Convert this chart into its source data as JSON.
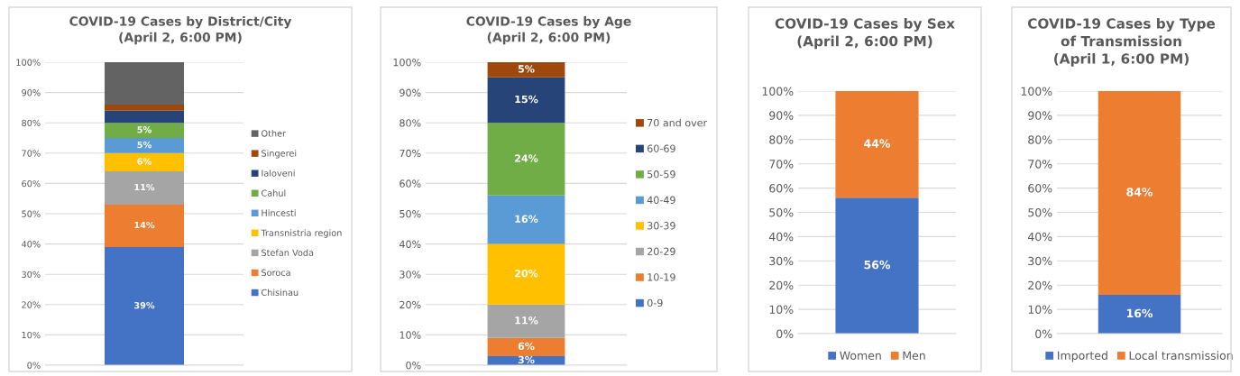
{
  "chart_data": [
    {
      "type": "bar",
      "title": "COVID-19 Cases by District/City\n(April 2, 6:00 PM)",
      "stacked": true,
      "categories": [
        null
      ],
      "ylim": [
        0,
        100
      ],
      "yticks": [
        {
          "value": 0,
          "label": "0%"
        },
        {
          "value": 10,
          "label": "10%"
        },
        {
          "value": 20,
          "label": "20%"
        },
        {
          "value": 30,
          "label": "30%"
        },
        {
          "value": 40,
          "label": "40%"
        },
        {
          "value": 50,
          "label": "50%"
        },
        {
          "value": 60,
          "label": "60%"
        },
        {
          "value": 70,
          "label": "70%"
        },
        {
          "value": 80,
          "label": "80%"
        },
        {
          "value": 90,
          "label": "90%"
        },
        {
          "value": 100,
          "label": "100%"
        }
      ],
      "grid": "y",
      "legend": "right",
      "series": [
        {
          "name": "Chisinau",
          "color": "#4472c4",
          "values": [
            39
          ],
          "value_labels": [
            "39%"
          ]
        },
        {
          "name": "Soroca",
          "color": "#ed7d31",
          "values": [
            14
          ],
          "value_labels": [
            "14%"
          ]
        },
        {
          "name": "Stefan Voda",
          "color": "#a5a5a5",
          "values": [
            11
          ],
          "value_labels": [
            "11%"
          ]
        },
        {
          "name": "Transnistria region",
          "color": "#ffc000",
          "values": [
            6
          ],
          "value_labels": [
            "6%"
          ]
        },
        {
          "name": "Hincesti",
          "color": "#5b9bd5",
          "values": [
            5
          ],
          "value_labels": [
            "5%"
          ]
        },
        {
          "name": "Cahul",
          "color": "#70ad47",
          "values": [
            5
          ],
          "value_labels": [
            "5%"
          ]
        },
        {
          "name": "Ialoveni",
          "color": "#264478",
          "values": [
            4
          ],
          "value_labels": [
            null
          ]
        },
        {
          "name": "Singerei",
          "color": "#9e480e",
          "values": [
            2
          ],
          "value_labels": [
            null
          ]
        },
        {
          "name": "Other",
          "color": "#636363",
          "values": [
            14
          ],
          "value_labels": [
            null
          ]
        }
      ]
    },
    {
      "type": "bar",
      "title": "COVID-19 Cases by Age\n(April 2, 6:00 PM)",
      "stacked": true,
      "categories": [
        null
      ],
      "ylim": [
        0,
        100
      ],
      "yticks": [
        {
          "value": 0,
          "label": "0%"
        },
        {
          "value": 10,
          "label": "10%"
        },
        {
          "value": 20,
          "label": "20%"
        },
        {
          "value": 30,
          "label": "30%"
        },
        {
          "value": 40,
          "label": "40%"
        },
        {
          "value": 50,
          "label": "50%"
        },
        {
          "value": 60,
          "label": "60%"
        },
        {
          "value": 70,
          "label": "70%"
        },
        {
          "value": 80,
          "label": "80%"
        },
        {
          "value": 90,
          "label": "90%"
        },
        {
          "value": 100,
          "label": "100%"
        }
      ],
      "grid": "y",
      "legend": "right",
      "series": [
        {
          "name": "0-9",
          "color": "#4472c4",
          "values": [
            3
          ],
          "value_labels": [
            "3%"
          ]
        },
        {
          "name": "10-19",
          "color": "#ed7d31",
          "values": [
            6
          ],
          "value_labels": [
            "6%"
          ]
        },
        {
          "name": "20-29",
          "color": "#a5a5a5",
          "values": [
            11
          ],
          "value_labels": [
            "11%"
          ]
        },
        {
          "name": "30-39",
          "color": "#ffc000",
          "values": [
            20
          ],
          "value_labels": [
            "20%"
          ]
        },
        {
          "name": "40-49",
          "color": "#5b9bd5",
          "values": [
            16
          ],
          "value_labels": [
            "16%"
          ]
        },
        {
          "name": "50-59",
          "color": "#70ad47",
          "values": [
            24
          ],
          "value_labels": [
            "24%"
          ]
        },
        {
          "name": "60-69",
          "color": "#264478",
          "values": [
            15
          ],
          "value_labels": [
            "15%"
          ]
        },
        {
          "name": "70 and over",
          "color": "#9e480e",
          "values": [
            5
          ],
          "value_labels": [
            "5%"
          ]
        }
      ]
    },
    {
      "type": "bar",
      "title": "COVID-19 Cases by Sex\n(April 2, 6:00 PM)",
      "stacked": true,
      "categories": [
        null
      ],
      "ylim": [
        0,
        100
      ],
      "yticks": [
        {
          "value": 0,
          "label": "0%"
        },
        {
          "value": 10,
          "label": "10%"
        },
        {
          "value": 20,
          "label": "20%"
        },
        {
          "value": 30,
          "label": "30%"
        },
        {
          "value": 40,
          "label": "40%"
        },
        {
          "value": 50,
          "label": "50%"
        },
        {
          "value": 60,
          "label": "60%"
        },
        {
          "value": 70,
          "label": "70%"
        },
        {
          "value": 80,
          "label": "80%"
        },
        {
          "value": 90,
          "label": "90%"
        },
        {
          "value": 100,
          "label": "100%"
        }
      ],
      "grid": "y",
      "legend": "bottom",
      "series": [
        {
          "name": "Women",
          "color": "#4472c4",
          "values": [
            56
          ],
          "value_labels": [
            "56%"
          ]
        },
        {
          "name": "Men",
          "color": "#ed7d31",
          "values": [
            44
          ],
          "value_labels": [
            "44%"
          ]
        }
      ]
    },
    {
      "type": "bar",
      "title": "COVID-19 Cases by Type\nof Transmission\n(April 1, 6:00 PM)",
      "stacked": true,
      "categories": [
        null
      ],
      "ylim": [
        0,
        100
      ],
      "yticks": [
        {
          "value": 0,
          "label": "0%"
        },
        {
          "value": 10,
          "label": "10%"
        },
        {
          "value": 20,
          "label": "20%"
        },
        {
          "value": 30,
          "label": "30%"
        },
        {
          "value": 40,
          "label": "40%"
        },
        {
          "value": 50,
          "label": "50%"
        },
        {
          "value": 60,
          "label": "60%"
        },
        {
          "value": 70,
          "label": "70%"
        },
        {
          "value": 80,
          "label": "80%"
        },
        {
          "value": 90,
          "label": "90%"
        },
        {
          "value": 100,
          "label": "100%"
        }
      ],
      "grid": "y",
      "legend": "bottom",
      "series": [
        {
          "name": "Imported",
          "color": "#4472c4",
          "values": [
            16
          ],
          "value_labels": [
            "16%"
          ]
        },
        {
          "name": "Local transmission",
          "color": "#ed7d31",
          "values": [
            84
          ],
          "value_labels": [
            "84%"
          ]
        }
      ]
    }
  ]
}
